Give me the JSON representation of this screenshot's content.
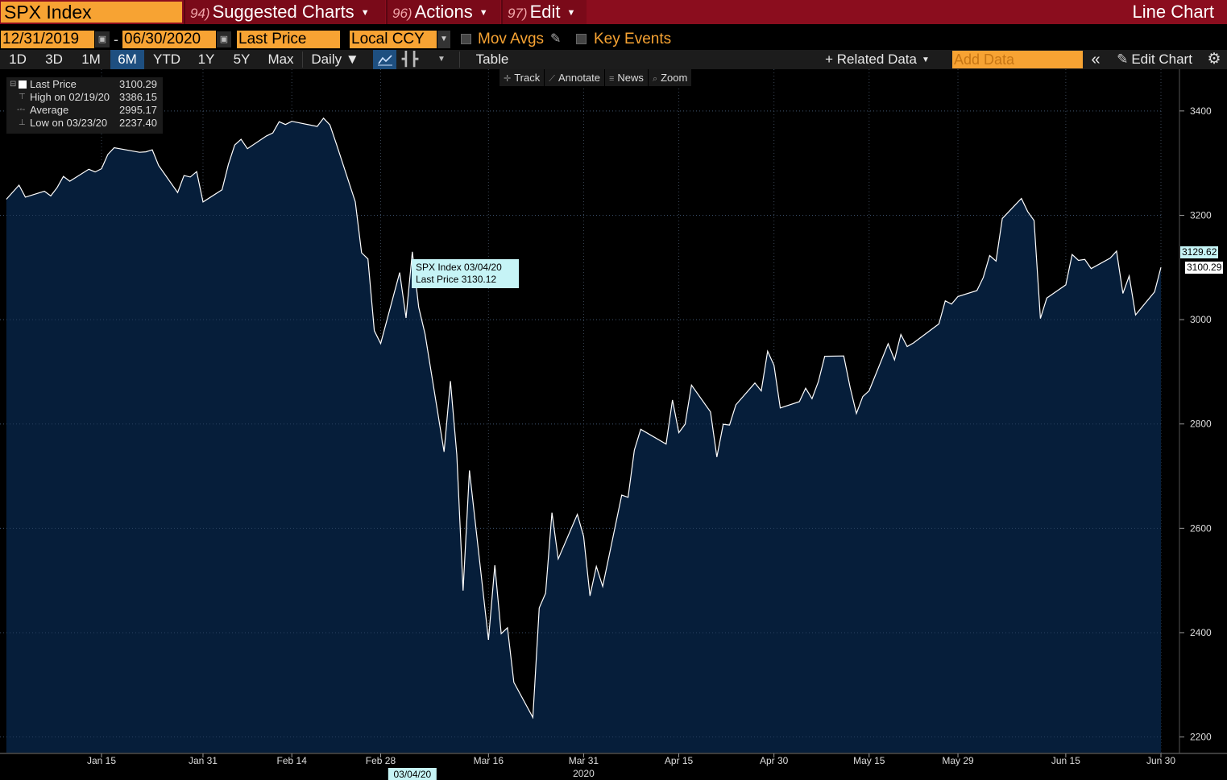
{
  "header": {
    "ticker": "SPX Index",
    "menus": [
      {
        "num": "94)",
        "label": "Suggested Charts"
      },
      {
        "num": "96)",
        "label": "Actions"
      },
      {
        "num": "97)",
        "label": "Edit"
      }
    ],
    "chart_title": "Line Chart"
  },
  "params": {
    "start_date": "12/31/2019",
    "date_sep": "-",
    "end_date": "06/30/2020",
    "field": "Last Price",
    "currency": "Local CCY",
    "mov_avgs": "Mov Avgs",
    "key_events": "Key Events"
  },
  "toolbar": {
    "ranges": [
      "1D",
      "3D",
      "1M",
      "6M",
      "YTD",
      "1Y",
      "5Y",
      "Max"
    ],
    "active_range": "6M",
    "frequency": "Daily ▼",
    "table": "Table",
    "related_data": "+ Related Data",
    "add_data_placeholder": "Add Data",
    "edit_chart": "Edit Chart"
  },
  "subtools": [
    "Track",
    "Annotate",
    "News",
    "Zoom"
  ],
  "legend": {
    "rows": [
      {
        "name": "Last Price",
        "value": "3100.29"
      },
      {
        "name": "High on 02/19/20",
        "value": "3386.15"
      },
      {
        "name": "Average",
        "value": "2995.17"
      },
      {
        "name": "Low on 03/23/20",
        "value": "2237.40"
      }
    ]
  },
  "tooltip": {
    "line1": "SPX Index 03/04/20",
    "line2": "Last Price 3130.12"
  },
  "price_tags": {
    "crosshair": "3129.62",
    "last": "3100.29"
  },
  "colors": {
    "accent_orange": "#f7a333",
    "header_red": "#8b0d1e",
    "area_fill": "#061e3a",
    "line": "#ffffff",
    "active_blue": "#1e4f80"
  },
  "chart_data": {
    "type": "area",
    "series": [
      {
        "name": "SPX Index",
        "x": [
          "12/31/19",
          "01/02/20",
          "01/03/20",
          "01/06/20",
          "01/07/20",
          "01/08/20",
          "01/09/20",
          "01/10/20",
          "01/13/20",
          "01/14/20",
          "01/15/20",
          "01/16/20",
          "01/17/20",
          "01/21/20",
          "01/22/20",
          "01/23/20",
          "01/24/20",
          "01/27/20",
          "01/28/20",
          "01/29/20",
          "01/30/20",
          "01/31/20",
          "02/03/20",
          "02/04/20",
          "02/05/20",
          "02/06/20",
          "02/07/20",
          "02/10/20",
          "02/11/20",
          "02/12/20",
          "02/13/20",
          "02/14/20",
          "02/18/20",
          "02/19/20",
          "02/20/20",
          "02/21/20",
          "02/24/20",
          "02/25/20",
          "02/26/20",
          "02/27/20",
          "02/28/20",
          "03/02/20",
          "03/03/20",
          "03/04/20",
          "03/05/20",
          "03/06/20",
          "03/09/20",
          "03/10/20",
          "03/11/20",
          "03/12/20",
          "03/13/20",
          "03/16/20",
          "03/17/20",
          "03/18/20",
          "03/19/20",
          "03/20/20",
          "03/23/20",
          "03/24/20",
          "03/25/20",
          "03/26/20",
          "03/27/20",
          "03/30/20",
          "03/31/20",
          "04/01/20",
          "04/02/20",
          "04/03/20",
          "04/06/20",
          "04/07/20",
          "04/08/20",
          "04/09/20",
          "04/13/20",
          "04/14/20",
          "04/15/20",
          "04/16/20",
          "04/17/20",
          "04/20/20",
          "04/21/20",
          "04/22/20",
          "04/23/20",
          "04/24/20",
          "04/27/20",
          "04/28/20",
          "04/29/20",
          "04/30/20",
          "05/01/20",
          "05/04/20",
          "05/05/20",
          "05/06/20",
          "05/07/20",
          "05/08/20",
          "05/11/20",
          "05/12/20",
          "05/13/20",
          "05/14/20",
          "05/15/20",
          "05/18/20",
          "05/19/20",
          "05/20/20",
          "05/21/20",
          "05/22/20",
          "05/26/20",
          "05/27/20",
          "05/28/20",
          "05/29/20",
          "06/01/20",
          "06/02/20",
          "06/03/20",
          "06/04/20",
          "06/05/20",
          "06/08/20",
          "06/09/20",
          "06/10/20",
          "06/11/20",
          "06/12/20",
          "06/15/20",
          "06/16/20",
          "06/17/20",
          "06/18/20",
          "06/19/20",
          "06/22/20",
          "06/23/20",
          "06/24/20",
          "06/25/20",
          "06/26/20",
          "06/29/20",
          "06/30/20"
        ],
        "values": [
          3230.78,
          3257.85,
          3234.85,
          3246.28,
          3237.18,
          3253.05,
          3274.7,
          3265.35,
          3288.13,
          3283.15,
          3289.29,
          3316.81,
          3329.62,
          3320.79,
          3321.75,
          3325.54,
          3295.47,
          3243.63,
          3276.24,
          3273.4,
          3283.66,
          3225.52,
          3248.92,
          3297.59,
          3334.69,
          3345.78,
          3327.71,
          3352.09,
          3357.75,
          3379.45,
          3373.94,
          3380.16,
          3370.29,
          3386.15,
          3373.23,
          3337.75,
          3225.89,
          3128.21,
          3116.39,
          2978.76,
          2954.22,
          3090.23,
          3003.37,
          3130.12,
          3023.94,
          2972.37,
          2746.56,
          2882.23,
          2741.38,
          2480.64,
          2711.02,
          2386.13,
          2529.19,
          2398.1,
          2409.39,
          2304.92,
          2237.4,
          2447.33,
          2475.56,
          2630.07,
          2541.47,
          2626.65,
          2584.59,
          2470.5,
          2526.9,
          2488.65,
          2663.68,
          2659.41,
          2749.98,
          2789.82,
          2761.63,
          2846.06,
          2783.36,
          2799.55,
          2874.56,
          2823.16,
          2736.56,
          2799.31,
          2797.8,
          2836.74,
          2878.48,
          2863.39,
          2939.51,
          2912.43,
          2830.71,
          2842.74,
          2868.44,
          2848.42,
          2881.19,
          2929.8,
          2930.32,
          2870.12,
          2820.0,
          2852.5,
          2863.7,
          2953.91,
          2922.94,
          2971.61,
          2948.51,
          2955.45,
          2991.77,
          3036.13,
          3029.73,
          3044.31,
          3055.73,
          3080.82,
          3122.87,
          3112.35,
          3193.93,
          3232.39,
          3207.18,
          3190.14,
          3002.1,
          3041.31,
          3066.59,
          3124.74,
          3113.49,
          3115.34,
          3097.74,
          3117.86,
          3131.29,
          3050.33,
          3083.76,
          3009.05,
          3053.24,
          3100.29
        ]
      }
    ],
    "x_ticks": [
      "Jan 15",
      "Jan 31",
      "Feb 14",
      "Feb 28",
      "Mar 16",
      "Mar 31",
      "Apr 15",
      "Apr 30",
      "May 15",
      "May 29",
      "Jun 15",
      "Jun 30"
    ],
    "x_year_label": "2020",
    "crosshair_date": "03/04/20",
    "y_ticks": [
      2200,
      2400,
      2600,
      2800,
      3000,
      3200,
      3400
    ],
    "ylim": [
      2170,
      3480
    ],
    "grid": true
  }
}
